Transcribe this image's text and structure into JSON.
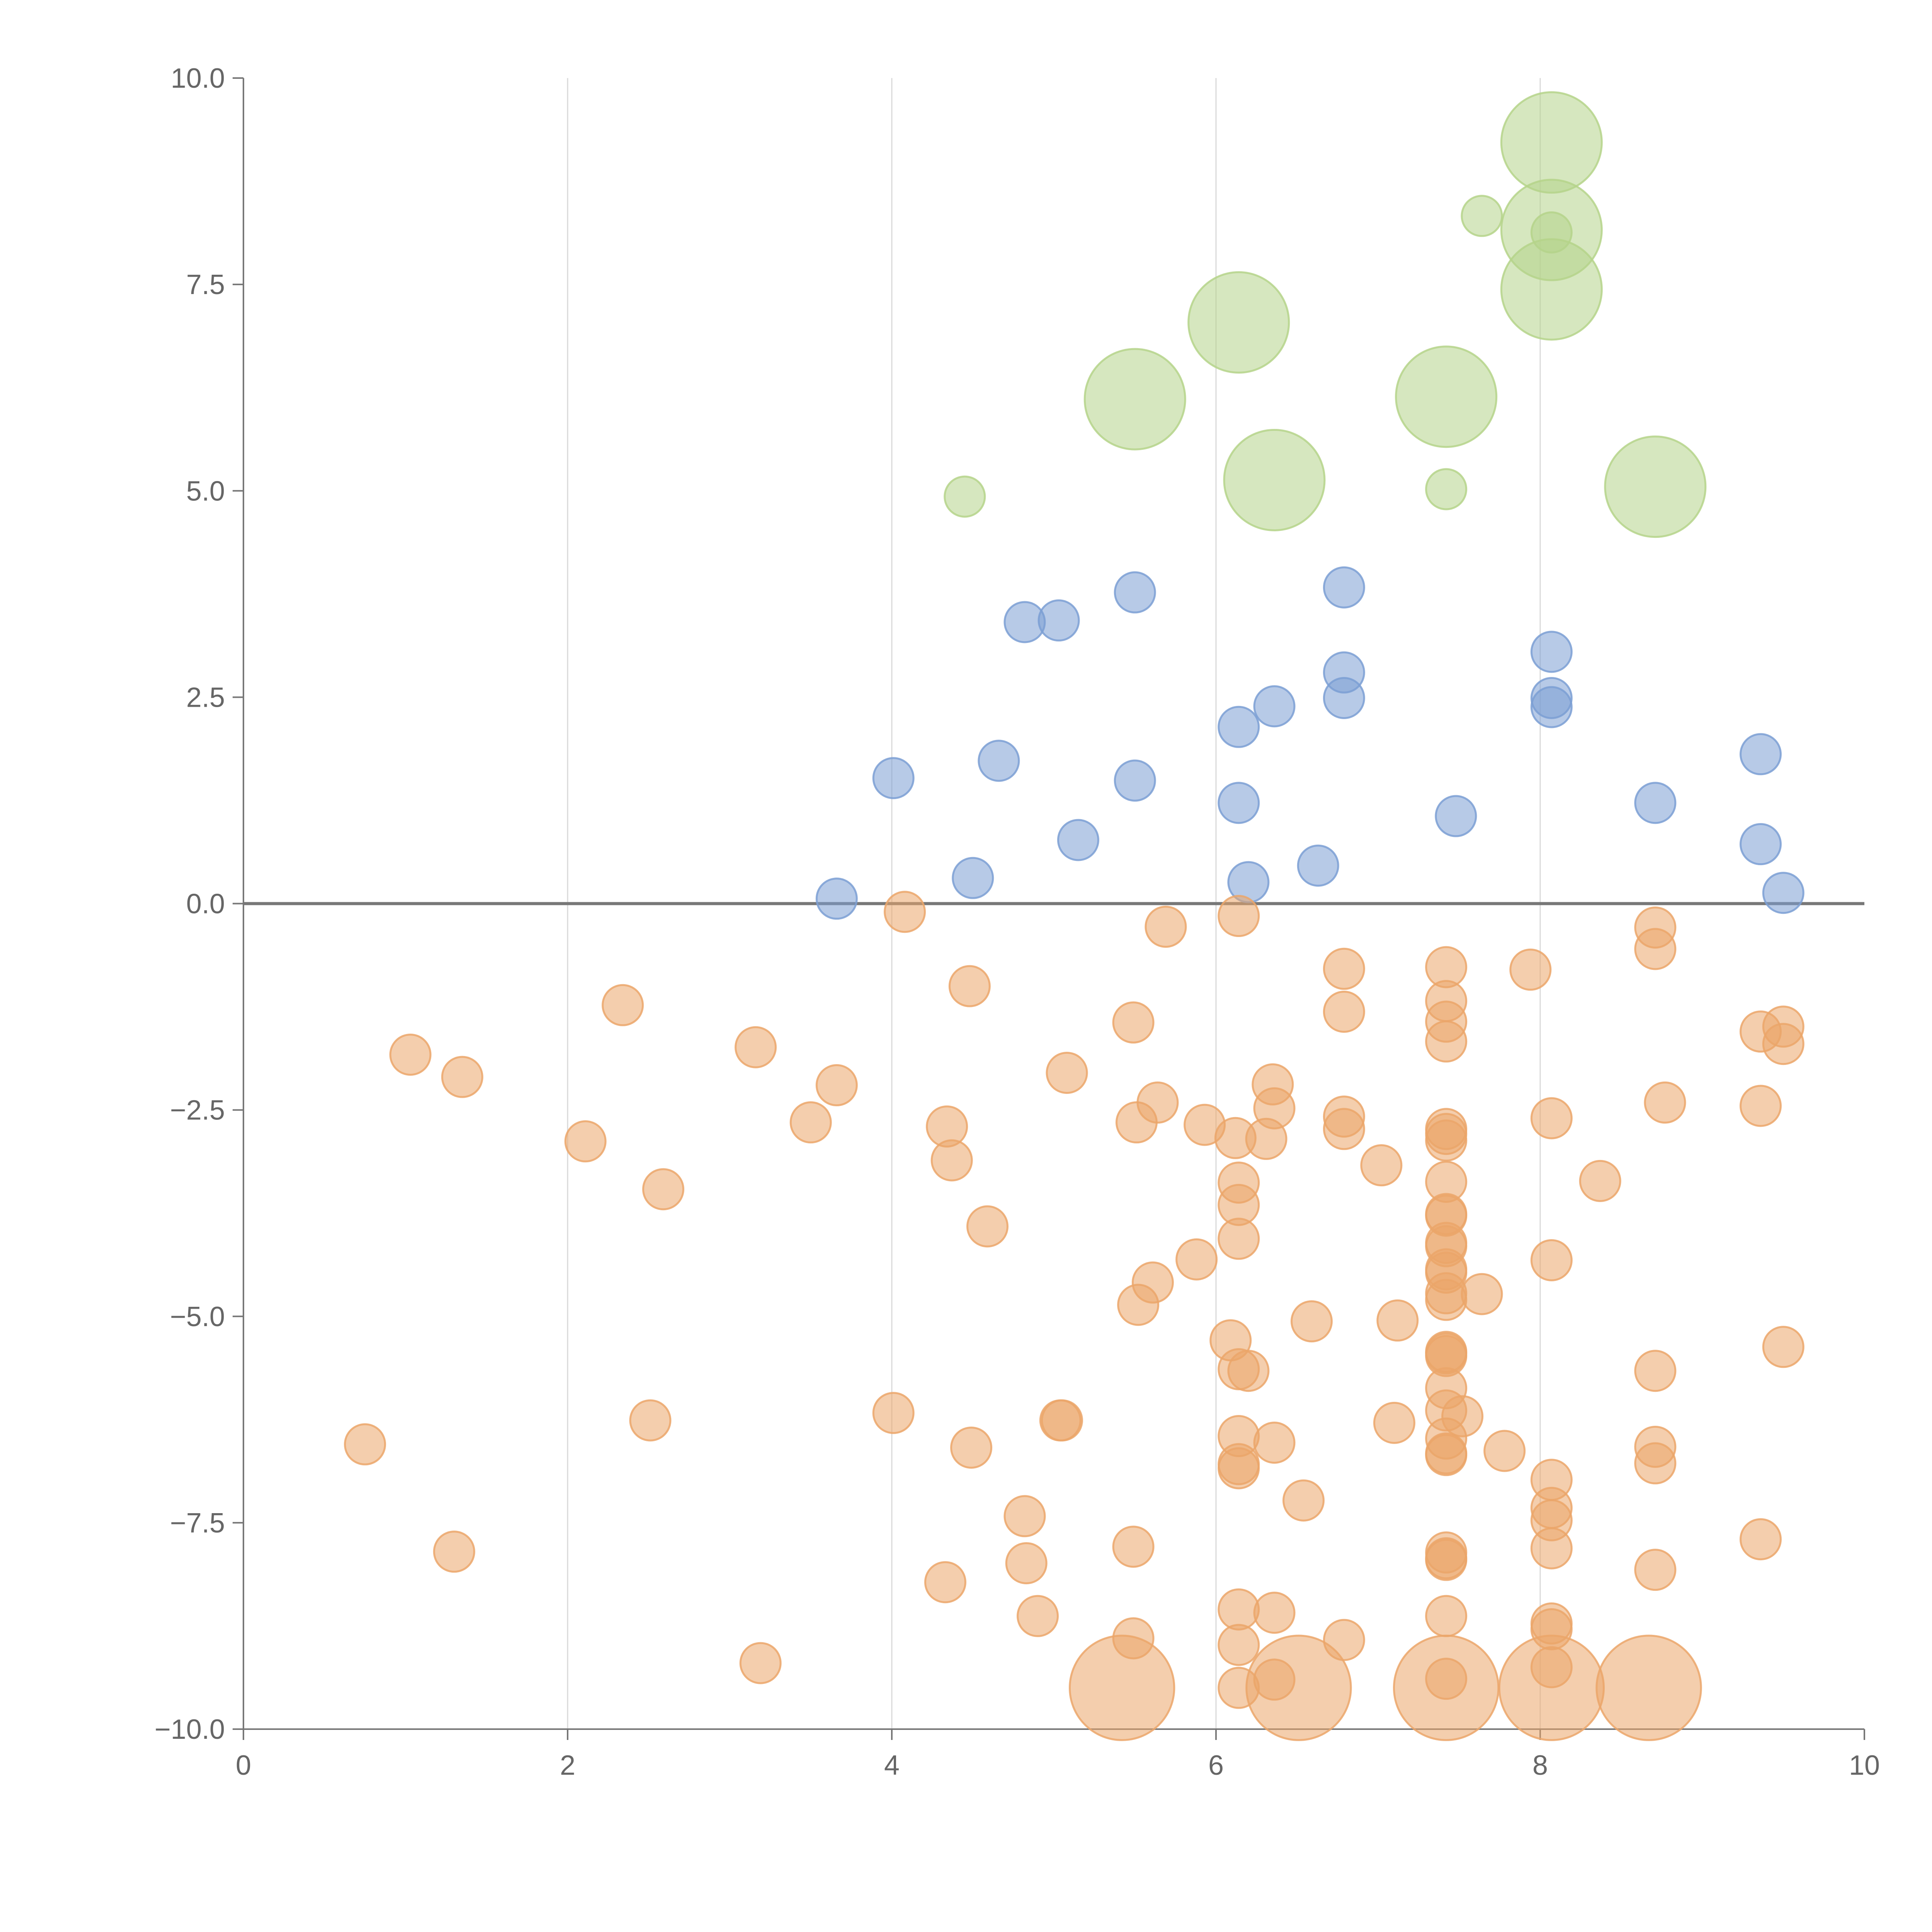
{
  "chart_data": {
    "type": "scatter",
    "title": "",
    "xlabel": "",
    "ylabel": "",
    "xlim": [
      0,
      10
    ],
    "ylim": [
      -10,
      10
    ],
    "x_ticks": [
      0,
      2,
      4,
      6,
      8,
      10
    ],
    "x_tick_labels": [
      "0",
      "2",
      "4",
      "6",
      "8",
      "10"
    ],
    "y_ticks": [
      10,
      7.5,
      5,
      2.5,
      0,
      -2.5,
      -5,
      -7.5,
      -10
    ],
    "y_tick_labels": [
      "10.0",
      "7.5",
      "5.0",
      "2.5",
      "0.0",
      "−2.5",
      "−5.0",
      "−7.5",
      "−10.0"
    ],
    "vertical_grid": true,
    "horizontal_grid": false,
    "zero_line": true,
    "legend": "none",
    "colors": {
      "blue": "#7b9fd4",
      "orange": "#eba66a",
      "green": "#b5d48a",
      "axis": "#777777",
      "grid": "#d9d9d9"
    },
    "series": [
      {
        "color": "blue",
        "points": [
          [
            3.66,
            0.06,
            1
          ],
          [
            4.01,
            1.52,
            1
          ],
          [
            4.5,
            0.31,
            1
          ],
          [
            4.66,
            1.73,
            1
          ],
          [
            4.82,
            3.41,
            1
          ],
          [
            5.03,
            3.43,
            1
          ],
          [
            5.15,
            0.77,
            1
          ],
          [
            5.5,
            3.77,
            1
          ],
          [
            5.5,
            1.49,
            1
          ],
          [
            6.14,
            2.14,
            1
          ],
          [
            6.14,
            1.22,
            1
          ],
          [
            6.2,
            0.26,
            1
          ],
          [
            6.36,
            2.39,
            1
          ],
          [
            6.63,
            0.46,
            1
          ],
          [
            6.79,
            3.83,
            1
          ],
          [
            6.79,
            2.8,
            1
          ],
          [
            6.79,
            2.49,
            1
          ],
          [
            7.48,
            1.06,
            1
          ],
          [
            8.07,
            3.05,
            1
          ],
          [
            8.07,
            2.49,
            1
          ],
          [
            8.07,
            2.38,
            1
          ],
          [
            8.71,
            1.22,
            1
          ],
          [
            9.36,
            1.81,
            1
          ],
          [
            9.36,
            0.72,
            1
          ],
          [
            9.5,
            0.13,
            1
          ]
        ]
      },
      {
        "color": "orange",
        "points": [
          [
            0.75,
            -6.55,
            1
          ],
          [
            1.03,
            -1.83,
            1
          ],
          [
            1.3,
            -7.85,
            1
          ],
          [
            1.35,
            -2.1,
            1
          ],
          [
            2.11,
            -2.88,
            1
          ],
          [
            2.34,
            -1.23,
            1
          ],
          [
            2.51,
            -6.26,
            1
          ],
          [
            2.59,
            -3.46,
            1
          ],
          [
            3.16,
            -1.74,
            1
          ],
          [
            3.19,
            -9.2,
            1
          ],
          [
            3.5,
            -2.65,
            1
          ],
          [
            3.66,
            -2.2,
            1
          ],
          [
            4.01,
            -6.17,
            1
          ],
          [
            4.08,
            -0.1,
            1
          ],
          [
            4.33,
            -8.22,
            1
          ],
          [
            4.34,
            -2.7,
            1
          ],
          [
            4.37,
            -3.11,
            1
          ],
          [
            4.48,
            -1.0,
            1
          ],
          [
            4.49,
            -6.59,
            1
          ],
          [
            4.59,
            -3.91,
            1
          ],
          [
            4.82,
            -7.42,
            1
          ],
          [
            4.83,
            -7.99,
            1
          ],
          [
            4.9,
            -8.63,
            1
          ],
          [
            5.04,
            -6.26,
            1
          ],
          [
            5.05,
            -6.26,
            1
          ],
          [
            5.08,
            -2.05,
            1
          ],
          [
            5.49,
            -1.44,
            1
          ],
          [
            5.49,
            -7.79,
            1
          ],
          [
            5.49,
            -8.9,
            1
          ],
          [
            5.51,
            -2.65,
            1
          ],
          [
            5.52,
            -4.86,
            1
          ],
          [
            5.61,
            -4.59,
            1
          ],
          [
            5.64,
            -2.41,
            1
          ],
          [
            5.69,
            -0.28,
            1
          ],
          [
            5.88,
            -4.31,
            1
          ],
          [
            5.93,
            -2.68,
            1
          ],
          [
            6.09,
            -5.29,
            1
          ],
          [
            6.12,
            -2.84,
            1
          ],
          [
            6.14,
            -0.15,
            1
          ],
          [
            6.14,
            -3.38,
            1
          ],
          [
            6.14,
            -3.65,
            1
          ],
          [
            6.14,
            -4.06,
            1
          ],
          [
            6.14,
            -5.64,
            1
          ],
          [
            6.14,
            -6.45,
            1
          ],
          [
            6.14,
            -6.79,
            1
          ],
          [
            6.14,
            -6.84,
            1
          ],
          [
            6.14,
            -8.55,
            1
          ],
          [
            6.14,
            -8.98,
            1
          ],
          [
            6.14,
            -9.5,
            1
          ],
          [
            6.2,
            -5.66,
            1
          ],
          [
            6.31,
            -2.85,
            1
          ],
          [
            6.35,
            -2.19,
            1
          ],
          [
            6.36,
            -2.48,
            1
          ],
          [
            6.36,
            -6.53,
            1
          ],
          [
            6.36,
            -8.59,
            1
          ],
          [
            6.36,
            -9.4,
            1
          ],
          [
            6.54,
            -7.23,
            1
          ],
          [
            6.59,
            -5.06,
            1
          ],
          [
            6.79,
            -0.79,
            1
          ],
          [
            6.79,
            -1.31,
            1
          ],
          [
            6.79,
            -2.58,
            1
          ],
          [
            6.79,
            -2.73,
            1
          ],
          [
            6.79,
            -8.92,
            1
          ],
          [
            7.02,
            -3.17,
            1
          ],
          [
            7.1,
            -6.29,
            1
          ],
          [
            7.12,
            -5.05,
            1
          ],
          [
            7.42,
            -0.77,
            1
          ],
          [
            7.42,
            -1.18,
            1
          ],
          [
            7.42,
            -1.43,
            1
          ],
          [
            7.42,
            -1.67,
            1
          ],
          [
            7.42,
            -2.73,
            1
          ],
          [
            7.42,
            -2.79,
            1
          ],
          [
            7.42,
            -2.87,
            1
          ],
          [
            7.42,
            -3.37,
            1
          ],
          [
            7.42,
            -3.76,
            1
          ],
          [
            7.42,
            -3.78,
            1
          ],
          [
            7.42,
            -4.11,
            1
          ],
          [
            7.42,
            -4.15,
            1
          ],
          [
            7.42,
            -4.43,
            1
          ],
          [
            7.42,
            -4.47,
            1
          ],
          [
            7.42,
            -4.72,
            1
          ],
          [
            7.42,
            -4.8,
            1
          ],
          [
            7.42,
            -5.43,
            1
          ],
          [
            7.42,
            -5.45,
            1
          ],
          [
            7.42,
            -5.48,
            1
          ],
          [
            7.42,
            -5.87,
            1
          ],
          [
            7.42,
            -6.14,
            1
          ],
          [
            7.42,
            -6.48,
            1
          ],
          [
            7.42,
            -6.66,
            1
          ],
          [
            7.42,
            -6.68,
            1
          ],
          [
            7.42,
            -7.86,
            1
          ],
          [
            7.42,
            -7.93,
            1
          ],
          [
            7.42,
            -7.95,
            1
          ],
          [
            7.42,
            -8.63,
            1
          ],
          [
            7.42,
            -9.39,
            1
          ],
          [
            7.52,
            -6.21,
            1
          ],
          [
            7.64,
            -4.73,
            1
          ],
          [
            7.78,
            -6.63,
            1
          ],
          [
            7.94,
            -0.8,
            1
          ],
          [
            8.07,
            -2.6,
            1
          ],
          [
            8.07,
            -4.32,
            1
          ],
          [
            8.07,
            -6.98,
            1
          ],
          [
            8.07,
            -7.32,
            1
          ],
          [
            8.07,
            -7.47,
            1
          ],
          [
            8.07,
            -7.81,
            1
          ],
          [
            8.07,
            -8.72,
            1
          ],
          [
            8.07,
            -8.79,
            1
          ],
          [
            8.07,
            -9.25,
            1
          ],
          [
            8.37,
            -3.36,
            1
          ],
          [
            8.71,
            -0.29,
            1
          ],
          [
            8.71,
            -0.55,
            1
          ],
          [
            8.71,
            -5.66,
            1
          ],
          [
            8.71,
            -6.58,
            1
          ],
          [
            8.71,
            -6.78,
            1
          ],
          [
            8.71,
            -8.07,
            1
          ],
          [
            8.77,
            -2.41,
            1
          ],
          [
            9.36,
            -1.55,
            1
          ],
          [
            9.36,
            -2.45,
            1
          ],
          [
            9.36,
            -7.7,
            1
          ],
          [
            9.5,
            -1.49,
            1
          ],
          [
            9.5,
            -1.7,
            1
          ],
          [
            9.5,
            -5.37,
            1
          ],
          [
            5.42,
            -9.5,
            2.6
          ],
          [
            6.51,
            -9.5,
            2.6
          ],
          [
            7.42,
            -9.5,
            2.6
          ],
          [
            8.07,
            -9.5,
            2.6
          ],
          [
            8.67,
            -9.5,
            2.6
          ]
        ]
      },
      {
        "color": "green",
        "points": [
          [
            4.45,
            4.93,
            1
          ],
          [
            7.42,
            5.02,
            1
          ],
          [
            7.64,
            8.33,
            1
          ],
          [
            8.07,
            8.13,
            1
          ],
          [
            5.5,
            6.11,
            2.5
          ],
          [
            6.14,
            7.04,
            2.5
          ],
          [
            6.36,
            5.13,
            2.5
          ],
          [
            7.42,
            6.14,
            2.5
          ],
          [
            8.07,
            9.22,
            2.5
          ],
          [
            8.07,
            8.16,
            2.5
          ],
          [
            8.07,
            7.44,
            2.5
          ],
          [
            8.71,
            5.05,
            2.5
          ]
        ]
      }
    ]
  }
}
